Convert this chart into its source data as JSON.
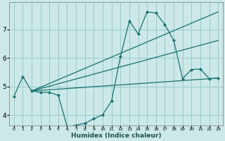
{
  "title": "",
  "xlabel": "Humidex (Indice chaleur)",
  "background_color": "#cce8e8",
  "grid_color": "#99cccc",
  "line_color": "#1a7070",
  "xlim": [
    -0.5,
    23.5
  ],
  "ylim": [
    3.65,
    7.95
  ],
  "yticks": [
    4,
    5,
    6,
    7
  ],
  "xticks": [
    0,
    1,
    2,
    3,
    4,
    5,
    6,
    7,
    8,
    9,
    10,
    11,
    12,
    13,
    14,
    15,
    16,
    17,
    18,
    19,
    20,
    21,
    22,
    23
  ],
  "line1_x": [
    0,
    1,
    2,
    3,
    4,
    5,
    6,
    7,
    8,
    9,
    10,
    11,
    12,
    13,
    14,
    15,
    16,
    17,
    18,
    19,
    20,
    21,
    22,
    23
  ],
  "line1_y": [
    4.65,
    5.35,
    4.85,
    4.8,
    4.8,
    4.7,
    3.6,
    3.65,
    3.72,
    3.88,
    4.02,
    4.5,
    6.05,
    7.3,
    6.85,
    7.62,
    7.58,
    7.18,
    6.62,
    5.28,
    5.6,
    5.62,
    5.28,
    5.3
  ],
  "line2_x": [
    2,
    23
  ],
  "line2_y": [
    4.85,
    5.3
  ],
  "line3_x": [
    2,
    23
  ],
  "line3_y": [
    4.85,
    6.62
  ],
  "line4_x": [
    2,
    23
  ],
  "line4_y": [
    4.85,
    7.62
  ]
}
